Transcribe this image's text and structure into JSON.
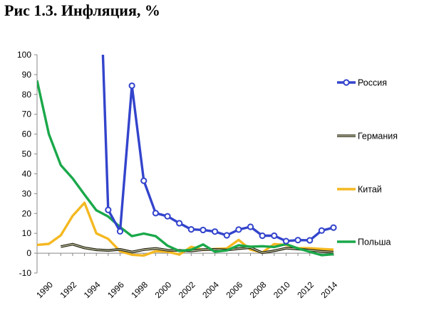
{
  "title": "Рис 1.3. Инфляция, %",
  "chart_data": {
    "type": "line",
    "title": "Рис 1.3. Инфляция, %",
    "xlabel": "",
    "ylabel": "",
    "xlim": [
      1990,
      2015
    ],
    "ylim": [
      -10,
      100
    ],
    "y_ticks": [
      -10,
      0,
      10,
      20,
      30,
      40,
      50,
      60,
      70,
      80,
      90,
      100
    ],
    "x_ticks": [
      1990,
      1992,
      1994,
      1996,
      1998,
      2000,
      2002,
      2004,
      2006,
      2008,
      2010,
      2012,
      2014
    ],
    "grid": false,
    "legend_position": "right",
    "series": [
      {
        "name": "Россия",
        "color": "#3344cc",
        "marker": "circle",
        "x": [
          1995,
          1996,
          1997,
          1998,
          1999,
          2000,
          2001,
          2002,
          2003,
          2004,
          2005,
          2006,
          2007,
          2008,
          2009,
          2010,
          2011,
          2012,
          2013,
          2014,
          2015
        ],
        "y": [
          197.5,
          21.8,
          11.0,
          84.4,
          36.5,
          20.2,
          18.6,
          15.1,
          12.0,
          11.7,
          10.9,
          9.0,
          11.9,
          13.3,
          8.8,
          8.8,
          6.1,
          6.6,
          6.5,
          11.4,
          12.9
        ]
      },
      {
        "name": "Германия",
        "color": "#222211",
        "marker": "none",
        "x": [
          1992,
          1993,
          1994,
          1995,
          1996,
          1997,
          1998,
          1999,
          2000,
          2001,
          2002,
          2003,
          2004,
          2005,
          2006,
          2007,
          2008,
          2009,
          2010,
          2011,
          2012,
          2013,
          2014,
          2015
        ],
        "y": [
          3.3,
          4.5,
          2.7,
          1.7,
          1.4,
          1.9,
          0.6,
          1.8,
          2.4,
          1.5,
          1.4,
          1.1,
          1.8,
          1.9,
          1.6,
          2.3,
          2.8,
          0.2,
          1.2,
          2.5,
          2.1,
          1.5,
          0.9,
          0.5
        ]
      },
      {
        "name": "Китай",
        "color": "#f4b820",
        "marker": "none",
        "x": [
          1990,
          1991,
          1992,
          1993,
          1994,
          1995,
          1996,
          1997,
          1998,
          1999,
          2000,
          2001,
          2002,
          2003,
          2004,
          2005,
          2006,
          2007,
          2008,
          2009,
          2010,
          2011,
          2012,
          2013,
          2014,
          2015
        ],
        "y": [
          4.2,
          4.7,
          9.0,
          18.8,
          25.4,
          10.0,
          7.2,
          1.0,
          -0.8,
          -1.2,
          1.0,
          0.7,
          -0.7,
          3.2,
          1.6,
          2.1,
          2.4,
          6.7,
          1.8,
          0.4,
          4.6,
          4.2,
          2.5,
          2.5,
          2.1,
          1.8
        ]
      },
      {
        "name": "Польша",
        "color": "#1aa84a",
        "marker": "none",
        "x": [
          1990,
          1991,
          1992,
          1993,
          1994,
          1995,
          1996,
          1997,
          1998,
          1999,
          2000,
          2001,
          2002,
          2003,
          2004,
          2005,
          2006,
          2007,
          2008,
          2009,
          2010,
          2011,
          2012,
          2013,
          2014,
          2015
        ],
        "y": [
          87.0,
          60.0,
          44.4,
          37.7,
          29.5,
          21.6,
          18.5,
          13.2,
          8.6,
          9.9,
          8.6,
          3.8,
          1.1,
          1.7,
          4.4,
          0.7,
          1.4,
          4.0,
          3.3,
          3.5,
          3.1,
          4.6,
          2.4,
          0.7,
          -1.0,
          -0.5
        ]
      }
    ]
  }
}
